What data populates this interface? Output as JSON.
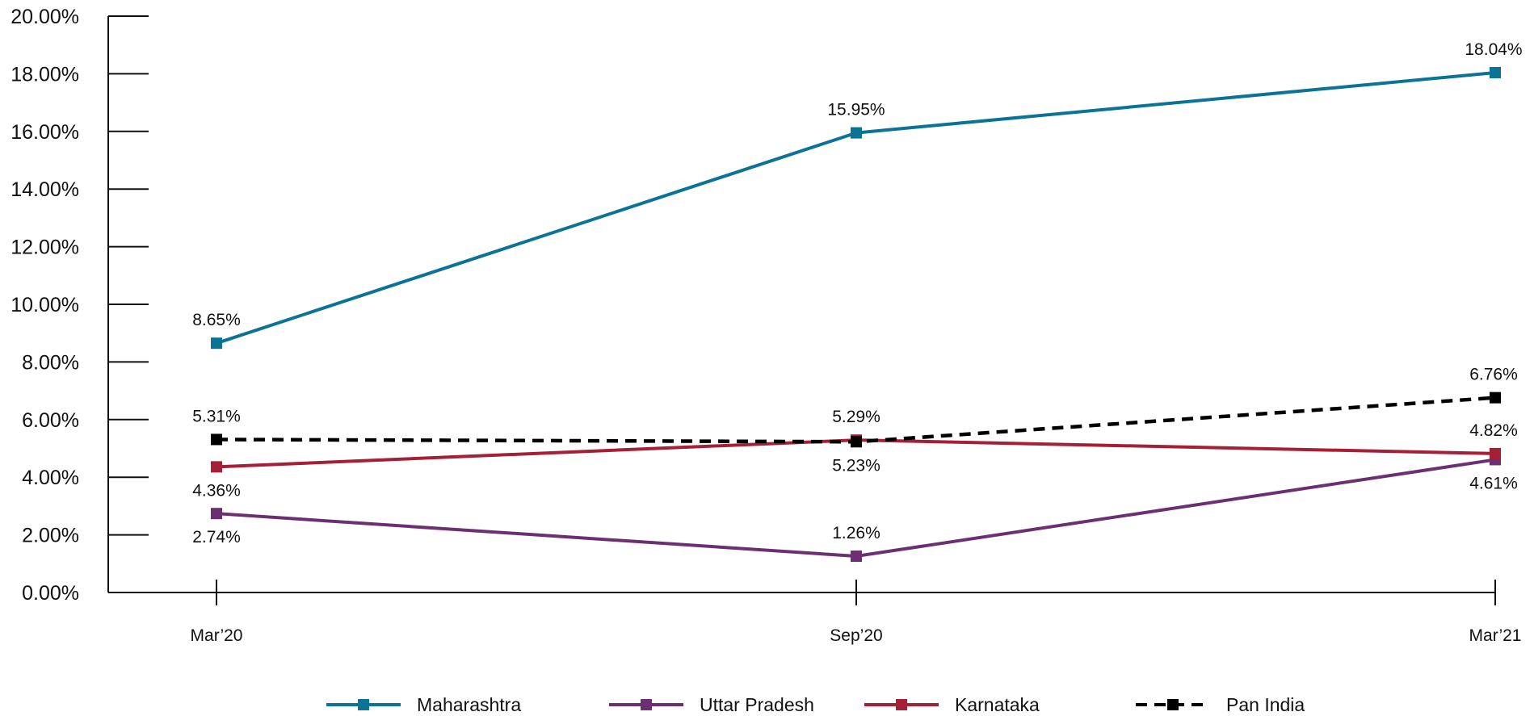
{
  "chart_data": {
    "type": "line",
    "categories": [
      "Mar’20",
      "Sep’20",
      "Mar’21"
    ],
    "y_ticks": [
      "0.00%",
      "2.00%",
      "4.00%",
      "6.00%",
      "8.00%",
      "10.00%",
      "12.00%",
      "14.00%",
      "16.00%",
      "18.00%",
      "20.00%"
    ],
    "ylim": [
      0,
      20
    ],
    "grid": false,
    "legend_position": "bottom",
    "series": [
      {
        "name": "Maharashtra",
        "values": [
          8.65,
          15.95,
          18.04
        ],
        "labels": [
          "8.65%",
          "15.95%",
          "18.04%"
        ],
        "color": "#0b7396",
        "dashed": false
      },
      {
        "name": "Uttar Pradesh",
        "values": [
          2.74,
          1.26,
          4.61
        ],
        "labels": [
          "2.74%",
          "1.26%",
          "4.61%"
        ],
        "color": "#6b2f72",
        "dashed": false
      },
      {
        "name": "Karnataka",
        "values": [
          4.36,
          5.29,
          4.82
        ],
        "labels": [
          "4.36%",
          "5.29%",
          "4.82%"
        ],
        "color": "#a51f37",
        "dashed": false
      },
      {
        "name": "Pan India",
        "values": [
          5.31,
          5.23,
          6.76
        ],
        "labels": [
          "5.31%",
          "5.23%",
          "6.76%"
        ],
        "color": "#000000",
        "dashed": true
      }
    ]
  }
}
